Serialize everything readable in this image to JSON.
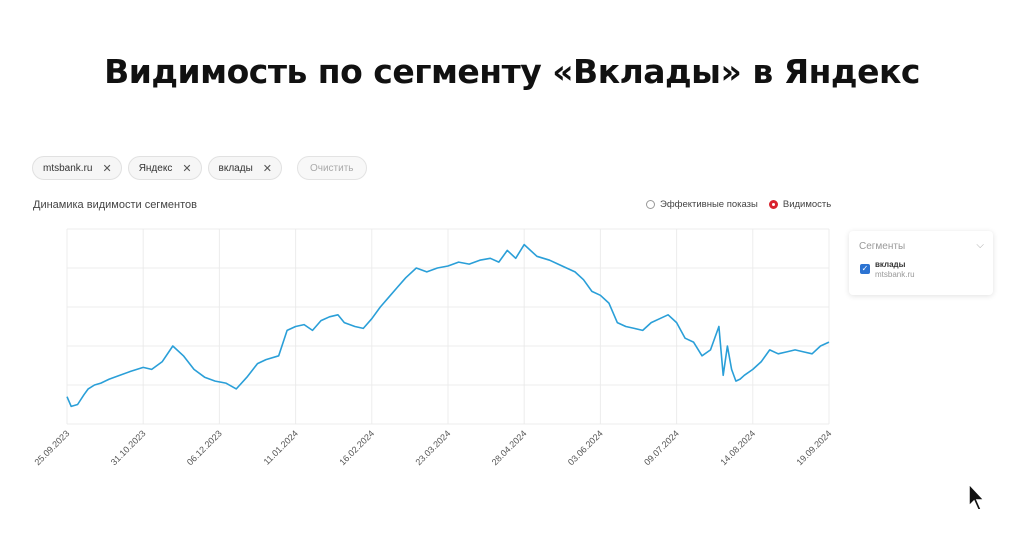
{
  "page": {
    "title": "Видимость по сегменту «Вклады» в Яндекс"
  },
  "filters": {
    "chips": [
      {
        "label": "mtsbank.ru",
        "close_icon": "close-icon"
      },
      {
        "label": "Яндекс",
        "close_icon": "close-icon"
      },
      {
        "label": "вклады",
        "close_icon": "close-icon"
      }
    ],
    "clear_label": "Очистить"
  },
  "chart_header": {
    "title": "Динамика видимости сегментов",
    "metric_options": [
      {
        "label": "Эффективные показы",
        "selected": false
      },
      {
        "label": "Видимость",
        "selected": true
      }
    ]
  },
  "legend": {
    "header": "Сегменты",
    "header_icon": "chevron-down-icon",
    "items": [
      {
        "name": "вклады",
        "domain": "mtsbank.ru",
        "checked": true
      }
    ]
  },
  "colors": {
    "line": "#2a9fd8",
    "accent_red": "#d9232e",
    "checkbox": "#2c73d2"
  },
  "chart_data": {
    "type": "line",
    "x_tick_labels": [
      "25.09.2023",
      "31.10.2023",
      "06.12.2023",
      "11.01.2024",
      "16.02.2024",
      "23.03.2024",
      "28.04.2024",
      "03.06.2024",
      "09.07.2024",
      "14.08.2024",
      "19.09.2024"
    ],
    "x_range": [
      0,
      360
    ],
    "y_range": [
      0,
      100
    ],
    "y_ticks_visible": false,
    "grid": true,
    "series": [
      {
        "x": [
          0,
          2,
          5,
          8,
          10,
          13,
          16,
          20,
          25,
          30,
          36,
          40,
          45,
          50,
          55,
          60,
          65,
          70,
          75,
          80,
          85,
          90,
          94,
          100,
          104,
          108,
          112,
          116,
          120,
          124,
          128,
          131,
          136,
          140,
          144,
          148,
          152,
          156,
          160,
          165,
          170,
          175,
          180,
          185,
          190,
          195,
          200,
          204,
          208,
          212,
          216,
          222,
          228,
          232,
          236,
          240,
          244,
          248,
          252,
          256,
          260,
          264,
          268,
          272,
          276,
          280,
          284,
          288,
          292,
          296,
          300,
          304,
          308,
          310,
          312,
          314,
          316,
          318,
          320,
          324,
          328,
          332,
          336,
          340,
          344,
          348,
          352,
          356,
          360
        ],
        "y": [
          14,
          9,
          10,
          15,
          18,
          20,
          21,
          23,
          25,
          27,
          29,
          28,
          32,
          40,
          35,
          28,
          24,
          22,
          21,
          18,
          24,
          31,
          33,
          35,
          48,
          50,
          51,
          48,
          53,
          55,
          56,
          52,
          50,
          49,
          54,
          60,
          65,
          70,
          75,
          80,
          78,
          80,
          81,
          83,
          82,
          84,
          85,
          83,
          89,
          85,
          92,
          86,
          84,
          82,
          80,
          78,
          74,
          68,
          66,
          62,
          52,
          50,
          49,
          48,
          52,
          54,
          56,
          52,
          44,
          42,
          35,
          38,
          50,
          25,
          40,
          28,
          22,
          23,
          25,
          28,
          32,
          38,
          36,
          37,
          38,
          37,
          36,
          40,
          42
        ]
      }
    ]
  }
}
